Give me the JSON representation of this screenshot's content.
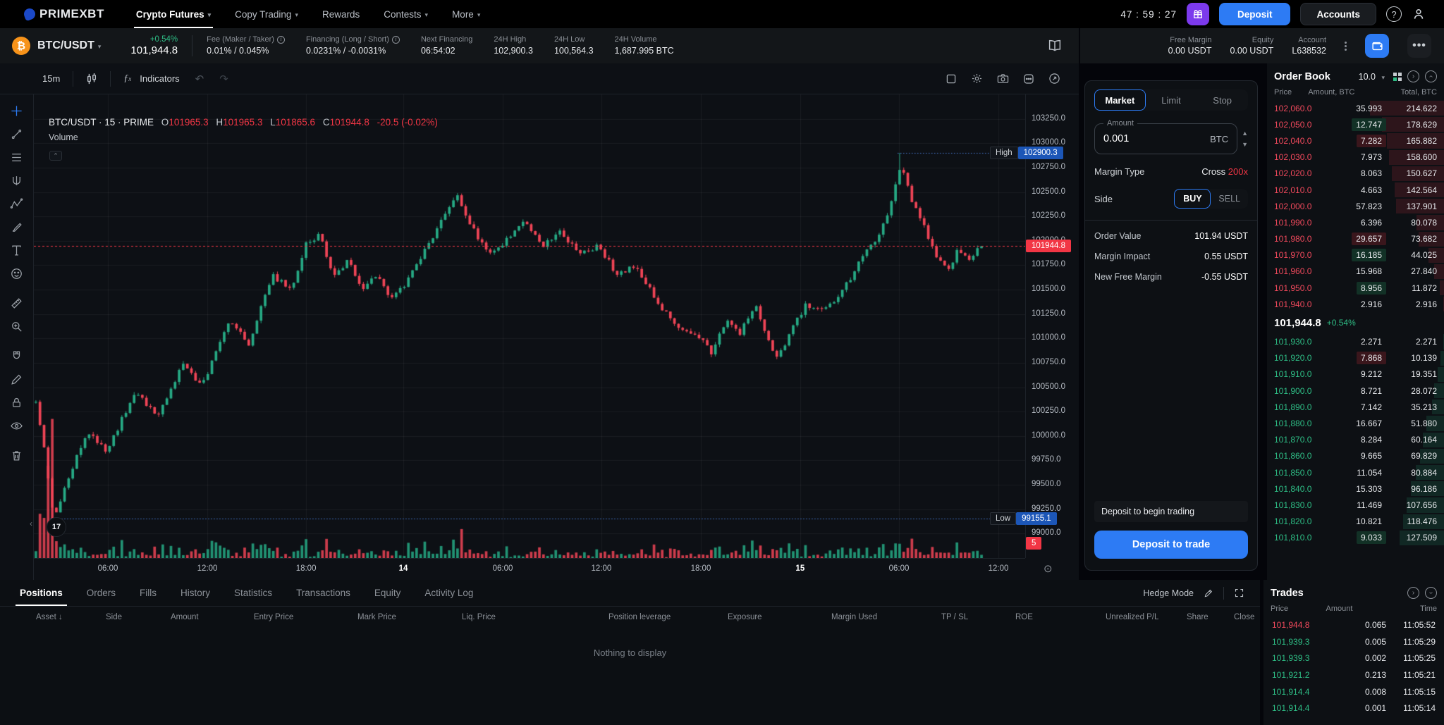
{
  "colors": {
    "green": "#2ebd85",
    "red": "#f23645",
    "candle_up": "#26a984",
    "candle_dn": "#ef4456",
    "blue": "#2d7bf4",
    "tag_blue": "#1c56b7",
    "purple": "#7c3aed",
    "grid": "rgba(255,255,255,0.055)",
    "dotted_line": "#4a7bd5"
  },
  "topnav": {
    "brand": "PRIMEXBT",
    "items": [
      {
        "label": "Crypto Futures",
        "chevron": true,
        "active": true
      },
      {
        "label": "Copy Trading",
        "chevron": true,
        "active": false
      },
      {
        "label": "Rewards",
        "chevron": false,
        "active": false
      },
      {
        "label": "Contests",
        "chevron": true,
        "active": false
      },
      {
        "label": "More",
        "chevron": true,
        "active": false
      }
    ],
    "timer": "47 : 59 : 27",
    "deposit_label": "Deposit",
    "accounts_label": "Accounts"
  },
  "instrument": {
    "pair": "BTC/USDT",
    "coin_symbol": "₿",
    "change": "+0.54%",
    "price": "101,944.8",
    "stats": [
      {
        "label": "Fee (Maker / Taker)",
        "info": true,
        "value": "0.01% / 0.045%"
      },
      {
        "label": "Financing (Long / Short)",
        "info": true,
        "value": "0.0231% / -0.0031%"
      },
      {
        "label": "Next Financing",
        "info": false,
        "value": "06:54:02"
      },
      {
        "label": "24H High",
        "info": false,
        "value": "102,900.3"
      },
      {
        "label": "24H Low",
        "info": false,
        "value": "100,564.3"
      },
      {
        "label": "24H Volume",
        "info": false,
        "value": "1,687.995 BTC"
      }
    ]
  },
  "account": {
    "stats": [
      {
        "label": "Free Margin",
        "value": "0.00 USDT"
      },
      {
        "label": "Equity",
        "value": "0.00 USDT"
      },
      {
        "label": "Account",
        "value": "L638532"
      }
    ]
  },
  "chart": {
    "toolbar": {
      "timeframe": "15m",
      "indicators": "Indicators"
    },
    "legend": {
      "title": "BTC/USDT · 15 · PRIME",
      "o": "101965.3",
      "h": "101965.3",
      "l": "101865.6",
      "c": "101944.8",
      "change": "-20.5 (-0.02%)",
      "volume_label": "Volume"
    },
    "high_tag": {
      "label": "High",
      "value": "102900.3"
    },
    "low_tag": {
      "label": "Low",
      "value": "99155.1"
    },
    "price_tag": "101944.8",
    "countdown_tag": "5",
    "y_ticks": [
      103250,
      103000,
      102750,
      102500,
      102250,
      102000,
      101750,
      101500,
      101250,
      101000,
      100750,
      100500,
      100250,
      100000,
      99750,
      99500,
      99250,
      99000
    ],
    "x_labels": [
      {
        "t": "06:00",
        "f": 0.0747,
        "major": false
      },
      {
        "t": "12:00",
        "f": 0.175,
        "major": false
      },
      {
        "t": "18:00",
        "f": 0.2746,
        "major": false
      },
      {
        "t": "14",
        "f": 0.3727,
        "major": true
      },
      {
        "t": "06:00",
        "f": 0.473,
        "major": false
      },
      {
        "t": "12:00",
        "f": 0.5725,
        "major": false
      },
      {
        "t": "18:00",
        "f": 0.6728,
        "major": false
      },
      {
        "t": "15",
        "f": 0.773,
        "major": true
      },
      {
        "t": "06:00",
        "f": 0.8727,
        "major": false
      },
      {
        "t": "12:00",
        "f": 0.973,
        "major": false
      }
    ],
    "price_range": [
      98750,
      103500
    ],
    "current_price": 101944.8,
    "high_level": 102900.3,
    "low_level": 99155.1,
    "high_f": 0.915,
    "low_f": 0.019,
    "candle_count": 232,
    "candle_span": 0.958,
    "seed": 11,
    "anchors": [
      [
        0,
        100350
      ],
      [
        0.01,
        99800
      ],
      [
        0.019,
        99155
      ],
      [
        0.035,
        99600
      ],
      [
        0.055,
        100050
      ],
      [
        0.075,
        99850
      ],
      [
        0.105,
        100450
      ],
      [
        0.13,
        100200
      ],
      [
        0.155,
        100750
      ],
      [
        0.175,
        100500
      ],
      [
        0.205,
        101200
      ],
      [
        0.225,
        100950
      ],
      [
        0.25,
        101650
      ],
      [
        0.27,
        101500
      ],
      [
        0.287,
        102000
      ],
      [
        0.3,
        102050
      ],
      [
        0.315,
        101650
      ],
      [
        0.33,
        101800
      ],
      [
        0.345,
        101500
      ],
      [
        0.36,
        101650
      ],
      [
        0.375,
        101400
      ],
      [
        0.39,
        101550
      ],
      [
        0.405,
        101800
      ],
      [
        0.42,
        102050
      ],
      [
        0.446,
        102480
      ],
      [
        0.46,
        102150
      ],
      [
        0.478,
        101880
      ],
      [
        0.495,
        101980
      ],
      [
        0.515,
        102200
      ],
      [
        0.535,
        101950
      ],
      [
        0.555,
        102100
      ],
      [
        0.575,
        101850
      ],
      [
        0.595,
        101950
      ],
      [
        0.615,
        101650
      ],
      [
        0.635,
        101750
      ],
      [
        0.655,
        101400
      ],
      [
        0.675,
        101150
      ],
      [
        0.695,
        101050
      ],
      [
        0.705,
        100980
      ],
      [
        0.715,
        100850
      ],
      [
        0.73,
        101200
      ],
      [
        0.745,
        101050
      ],
      [
        0.76,
        101350
      ],
      [
        0.775,
        101000
      ],
      [
        0.784,
        100780
      ],
      [
        0.8,
        101100
      ],
      [
        0.815,
        101350
      ],
      [
        0.83,
        101300
      ],
      [
        0.845,
        101400
      ],
      [
        0.86,
        101600
      ],
      [
        0.875,
        101850
      ],
      [
        0.889,
        102000
      ],
      [
        0.9,
        102250
      ],
      [
        0.915,
        102800
      ],
      [
        0.925,
        102450
      ],
      [
        0.935,
        102250
      ],
      [
        0.945,
        102000
      ],
      [
        0.955,
        101800
      ],
      [
        0.965,
        101700
      ],
      [
        0.975,
        101900
      ],
      [
        0.988,
        101820
      ],
      [
        1,
        101944.8
      ]
    ],
    "drawing_tools": [
      "crosshair",
      "trend-line",
      "fib-retracement",
      "pitchfork",
      "xabcd-pattern",
      "brush",
      "text",
      "emoji",
      "ruler",
      "zoom-in",
      "magnet",
      "edit-pencil",
      "lock",
      "eye",
      "trash"
    ]
  },
  "order_form": {
    "tabs": [
      "Market",
      "Limit",
      "Stop"
    ],
    "active_tab": "Market",
    "amount_label": "Amount",
    "amount_value": "0.001",
    "amount_unit": "BTC",
    "margin_type_label": "Margin Type",
    "margin_type_value": "Cross",
    "leverage": "200x",
    "side_label": "Side",
    "buy_label": "BUY",
    "sell_label": "SELL",
    "rows": [
      {
        "label": "Order Value",
        "value": "101.94 USDT"
      },
      {
        "label": "Margin Impact",
        "value": "0.55 USDT"
      },
      {
        "label": "New Free Margin",
        "value": "-0.55 USDT"
      }
    ],
    "notice": "Deposit to begin trading",
    "cta": "Deposit to trade"
  },
  "order_book": {
    "title": "Order Book",
    "grouping": "10.0",
    "columns": [
      "Price",
      "Amount, BTC",
      "Total, BTC"
    ],
    "asks": [
      {
        "price": "102,060.0",
        "amount": "35.993",
        "total": "214.622",
        "hl": ""
      },
      {
        "price": "102,050.0",
        "amount": "12.747",
        "total": "178.629",
        "hl": "g"
      },
      {
        "price": "102,040.0",
        "amount": "7.282",
        "total": "165.882",
        "hl": "r"
      },
      {
        "price": "102,030.0",
        "amount": "7.973",
        "total": "158.600",
        "hl": ""
      },
      {
        "price": "102,020.0",
        "amount": "8.063",
        "total": "150.627",
        "hl": ""
      },
      {
        "price": "102,010.0",
        "amount": "4.663",
        "total": "142.564",
        "hl": ""
      },
      {
        "price": "102,000.0",
        "amount": "57.823",
        "total": "137.901",
        "hl": ""
      },
      {
        "price": "101,990.0",
        "amount": "6.396",
        "total": "80.078",
        "hl": ""
      },
      {
        "price": "101,980.0",
        "amount": "29.657",
        "total": "73.682",
        "hl": "r"
      },
      {
        "price": "101,970.0",
        "amount": "16.185",
        "total": "44.025",
        "hl": "g"
      },
      {
        "price": "101,960.0",
        "amount": "15.968",
        "total": "27.840",
        "hl": ""
      },
      {
        "price": "101,950.0",
        "amount": "8.956",
        "total": "11.872",
        "hl": "g"
      },
      {
        "price": "101,940.0",
        "amount": "2.916",
        "total": "2.916",
        "hl": ""
      }
    ],
    "mid_price": "101,944.8",
    "mid_change": "+0.54%",
    "bids": [
      {
        "price": "101,930.0",
        "amount": "2.271",
        "total": "2.271",
        "hl": ""
      },
      {
        "price": "101,920.0",
        "amount": "7.868",
        "total": "10.139",
        "hl": "r"
      },
      {
        "price": "101,910.0",
        "amount": "9.212",
        "total": "19.351",
        "hl": ""
      },
      {
        "price": "101,900.0",
        "amount": "8.721",
        "total": "28.072",
        "hl": ""
      },
      {
        "price": "101,890.0",
        "amount": "7.142",
        "total": "35.213",
        "hl": ""
      },
      {
        "price": "101,880.0",
        "amount": "16.667",
        "total": "51.880",
        "hl": ""
      },
      {
        "price": "101,870.0",
        "amount": "8.284",
        "total": "60.164",
        "hl": ""
      },
      {
        "price": "101,860.0",
        "amount": "9.665",
        "total": "69.829",
        "hl": ""
      },
      {
        "price": "101,850.0",
        "amount": "11.054",
        "total": "80.884",
        "hl": ""
      },
      {
        "price": "101,840.0",
        "amount": "15.303",
        "total": "96.186",
        "hl": ""
      },
      {
        "price": "101,830.0",
        "amount": "11.469",
        "total": "107.656",
        "hl": ""
      },
      {
        "price": "101,820.0",
        "amount": "10.821",
        "total": "118.476",
        "hl": ""
      },
      {
        "price": "101,810.0",
        "amount": "9.033",
        "total": "127.509",
        "hl": "g"
      }
    ],
    "max_total": 214.622
  },
  "trades": {
    "title": "Trades",
    "columns": [
      "Price",
      "Amount",
      "Time"
    ],
    "rows": [
      {
        "price": "101,944.8",
        "amount": "0.065",
        "time": "11:05:52",
        "dir": "dn"
      },
      {
        "price": "101,939.3",
        "amount": "0.005",
        "time": "11:05:29",
        "dir": "up"
      },
      {
        "price": "101,939.3",
        "amount": "0.002",
        "time": "11:05:25",
        "dir": "up"
      },
      {
        "price": "101,921.2",
        "amount": "0.213",
        "time": "11:05:21",
        "dir": "up"
      },
      {
        "price": "101,914.4",
        "amount": "0.008",
        "time": "11:05:15",
        "dir": "up"
      },
      {
        "price": "101,914.4",
        "amount": "0.001",
        "time": "11:05:14",
        "dir": "up"
      }
    ]
  },
  "positions_panel": {
    "tabs": [
      "Positions",
      "Orders",
      "Fills",
      "History",
      "Statistics",
      "Transactions",
      "Equity",
      "Activity Log"
    ],
    "active_tab": "Positions",
    "hedge_mode_label": "Hedge Mode",
    "columns": [
      "Asset",
      "Side",
      "Amount",
      "Entry Price",
      "Mark Price",
      "Liq. Price",
      "Position leverage",
      "Exposure",
      "Margin Used",
      "TP / SL",
      "ROE",
      "Unrealized P/L",
      "Share",
      "Close"
    ],
    "empty_text": "Nothing to display"
  }
}
